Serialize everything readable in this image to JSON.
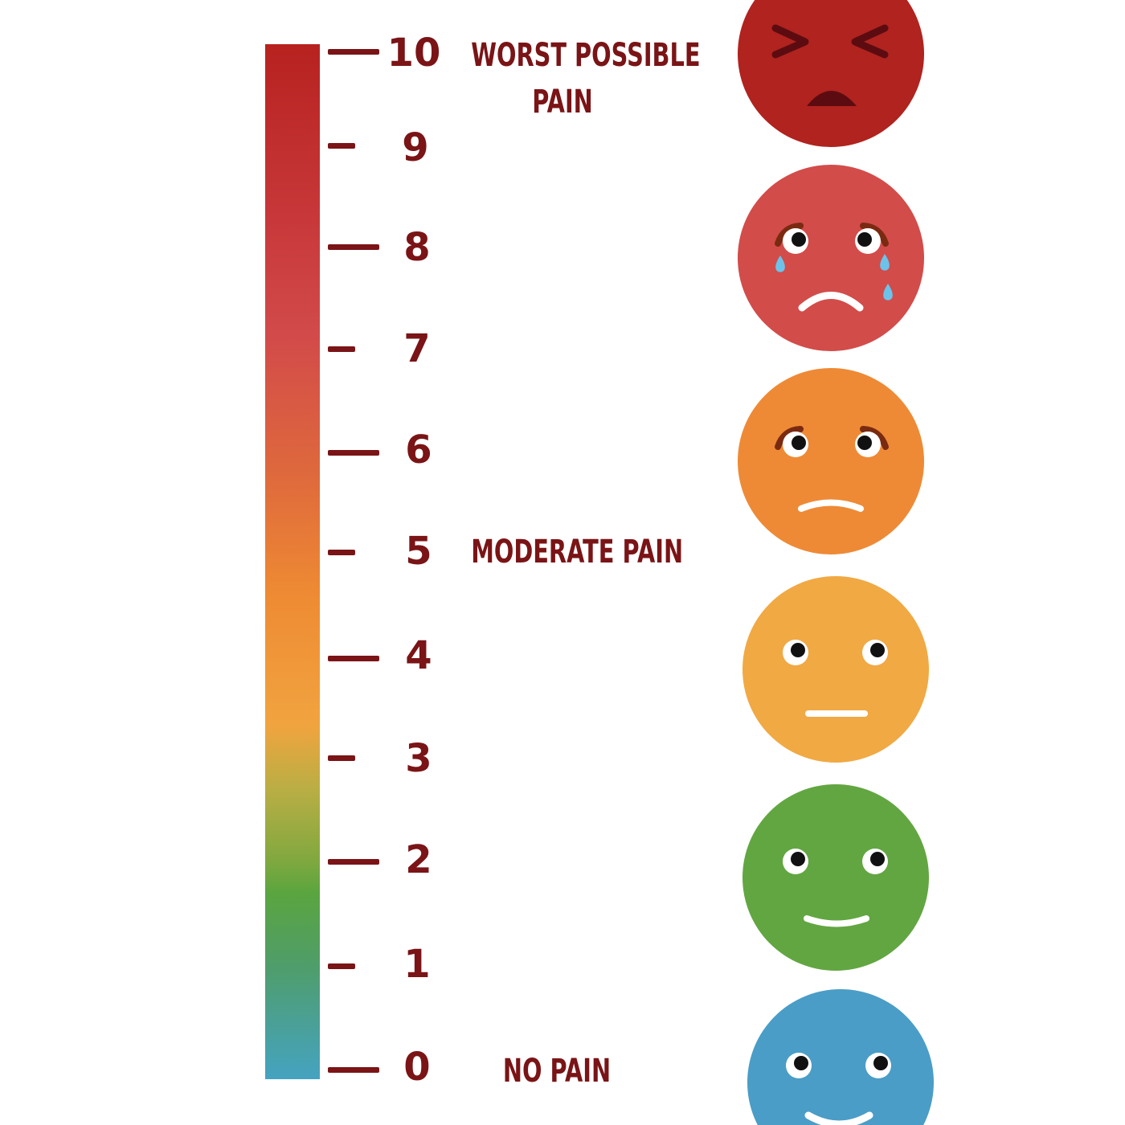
{
  "scale": {
    "numbers": [
      "10",
      "9",
      "8",
      "7",
      "6",
      "5",
      "4",
      "3",
      "2",
      "1",
      "0"
    ],
    "labels": {
      "worst_line1": "WORST POSSIBLE",
      "worst_line2": "PAIN",
      "moderate": "MODERATE PAIN",
      "none": "NO PAIN"
    }
  },
  "colors": {
    "text": "#7a1416",
    "face_10": "#b0231f",
    "face_8": "#d24c4a",
    "face_6": "#ee8a35",
    "face_4": "#f1a944",
    "face_2": "#62a641",
    "face_0": "#4a9dc6",
    "tear": "#6cc3ea"
  },
  "faces": [
    {
      "level": "10",
      "expression": "squint-anguish"
    },
    {
      "level": "8",
      "expression": "crying-frown"
    },
    {
      "level": "6",
      "expression": "worried-frown"
    },
    {
      "level": "4",
      "expression": "neutral"
    },
    {
      "level": "2",
      "expression": "slight-smile"
    },
    {
      "level": "0",
      "expression": "smile"
    }
  ]
}
